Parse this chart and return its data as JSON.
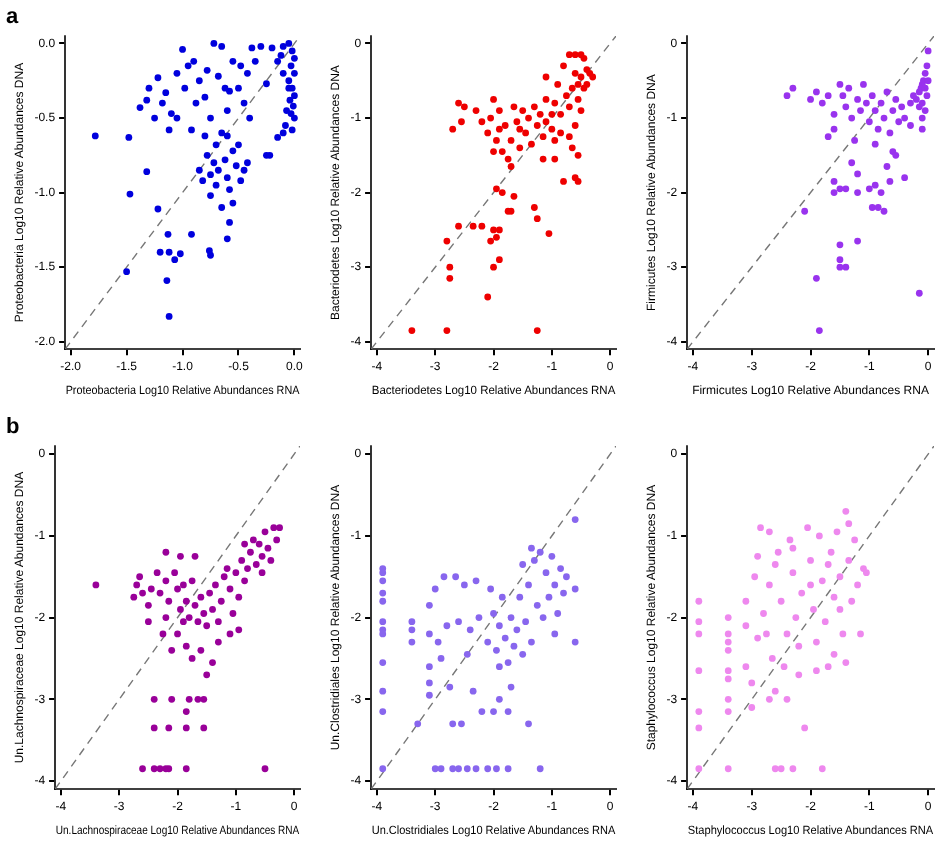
{
  "chart_data": [
    {
      "type": "scatter",
      "annotations": [
        "a"
      ],
      "xlabel": "Proteobacteria Log10 Relative Abundances RNA",
      "ylabel": "Proteobacteria Log10 Relative Abundances DNA",
      "xlim": [
        -2.05,
        0.05
      ],
      "ylim": [
        -2.05,
        0.05
      ],
      "xticks": [
        {
          "value": -2,
          "label": "-2.0"
        },
        {
          "value": -1.5,
          "label": "-1.5"
        },
        {
          "value": -1,
          "label": "-1.0"
        },
        {
          "value": -0.5,
          "label": "-0.5"
        },
        {
          "value": 0,
          "label": "0.0"
        }
      ],
      "yticks": [
        {
          "value": -2,
          "label": "-2.0"
        },
        {
          "value": -1.5,
          "label": "-1.5"
        },
        {
          "value": -1,
          "label": "-1.0"
        },
        {
          "value": -0.5,
          "label": "-0.5"
        },
        {
          "value": 0,
          "label": "0.0"
        }
      ],
      "marker": "circle",
      "legend": false,
      "series": [
        {
          "type": "line",
          "marker": "none",
          "color": "#777777",
          "line_style": "dashed",
          "x": [
            -2.05,
            0.05
          ],
          "values": [
            -2.05,
            0.05
          ]
        },
        {
          "color": "#0000dd",
          "x": [
            -1.78,
            -1.48,
            -1.47,
            -1.32,
            -1.22,
            -1.2,
            -1.13,
            -1.12,
            -1.07,
            -1.02,
            -0.92,
            -0.76,
            -0.75,
            -1.14,
            -1.12,
            -1.5,
            -0.6,
            -0.58,
            -0.55,
            -1.38,
            -1.3,
            -1.25,
            -1.22,
            -1.18,
            -1.15,
            -1.12,
            -1.1,
            -1.05,
            -1.0,
            -0.98,
            -0.95,
            -0.9,
            -0.88,
            -0.85,
            -0.8,
            -0.75,
            -0.72,
            -0.68,
            -0.65,
            -0.62,
            -0.6,
            -0.55,
            -0.5,
            -0.45,
            -0.42,
            -0.38,
            -0.35,
            -0.3,
            -0.25,
            -1.32,
            -1.05,
            -0.92,
            -0.78,
            -0.58,
            -0.48,
            -0.4,
            -0.85,
            -0.82,
            -0.8,
            -0.78,
            -0.75,
            -0.72,
            -0.7,
            -0.7,
            -0.68,
            -0.65,
            -0.65,
            -0.62,
            -0.6,
            -0.58,
            -0.55,
            -0.52,
            -0.5,
            -0.48,
            -0.45,
            -0.42,
            -0.75,
            -0.6,
            -0.25,
            -0.22,
            -0.1,
            -0.05,
            -0.02,
            0.0,
            -0.03,
            0.0,
            -0.05,
            -0.02,
            0.0,
            -0.04,
            -0.01,
            -0.03,
            0.0,
            -0.08,
            -0.05,
            -0.1,
            -0.15,
            -0.2,
            -0.15,
            -0.1,
            -0.12,
            -0.07,
            -0.02
          ],
          "values": [
            -0.62,
            -0.63,
            -1.01,
            -0.86,
            -1.11,
            -1.4,
            -1.28,
            -1.4,
            -1.45,
            -1.41,
            -1.28,
            -1.39,
            -1.42,
            -1.59,
            -1.83,
            -1.53,
            -1.31,
            -1.2,
            -1.07,
            -0.43,
            -0.3,
            -0.5,
            -0.23,
            -0.4,
            -0.33,
            -0.58,
            -0.47,
            -0.2,
            -0.04,
            -0.3,
            -0.15,
            -0.12,
            -0.4,
            -0.25,
            -0.36,
            -0.5,
            0.0,
            -0.22,
            -0.02,
            -0.3,
            -0.45,
            -0.12,
            -0.3,
            -0.4,
            -0.2,
            -0.03,
            -0.12,
            -0.02,
            -0.27,
            -0.38,
            -0.5,
            -0.58,
            -0.18,
            -0.32,
            -0.15,
            -0.5,
            -0.85,
            -0.92,
            -0.62,
            -0.75,
            -0.88,
            -0.8,
            -0.95,
            -0.68,
            -0.85,
            -0.6,
            -1.1,
            -0.78,
            -0.9,
            -0.98,
            -0.72,
            -0.82,
            -0.68,
            -0.92,
            -0.85,
            -0.8,
            -1.02,
            -0.62,
            -0.75,
            -0.75,
            -0.02,
            0.0,
            -0.05,
            -0.1,
            -0.15,
            -0.2,
            -0.25,
            -0.3,
            -0.35,
            -0.38,
            -0.42,
            -0.47,
            -0.5,
            -0.55,
            -0.3,
            -0.2,
            -0.12,
            -0.03,
            -0.63,
            -0.6,
            -0.08,
            -0.45,
            -0.58
          ]
        }
      ]
    },
    {
      "type": "scatter",
      "xlabel": "Bacteriodetes Log10 Relative Abundances RNA",
      "ylabel": "Bacteriodetes Log10 Relative Abundances DNA",
      "xlim": [
        -4.1,
        0.1
      ],
      "ylim": [
        -4.1,
        0.1
      ],
      "xticks": [
        -4,
        -3,
        -2,
        -1,
        0
      ],
      "yticks": [
        -4,
        -3,
        -2,
        -1,
        0
      ],
      "marker": "circle",
      "legend": false,
      "series": [
        {
          "type": "line",
          "marker": "none",
          "color": "#777777",
          "line_style": "dashed",
          "x": [
            -4.1,
            0.1
          ],
          "values": [
            -4.1,
            0.1
          ]
        },
        {
          "color": "#ee0000",
          "x": [
            -0.7,
            -0.6,
            -0.5,
            -0.45,
            -0.4,
            -0.35,
            -0.5,
            -0.55,
            -0.6,
            -0.65,
            -0.45,
            -0.3,
            -0.8,
            -0.75,
            -0.55,
            -0.7,
            -0.9,
            -0.95,
            -0.85,
            -1.1,
            -1.1,
            -0.5,
            -0.4,
            -2.6,
            -2.5,
            -2.7,
            -2.55,
            -2.3,
            -2.0,
            -1.9,
            -1.8,
            -2.05,
            -2.1,
            -1.95,
            -1.85,
            -1.7,
            -1.65,
            -1.6,
            -1.55,
            -1.5,
            -1.45,
            -1.4,
            -1.35,
            -1.3,
            -1.25,
            -1.2,
            -1.15,
            -1.1,
            -1.0,
            -0.95,
            -2.0,
            -1.75,
            -1.7,
            -1.9,
            -2.2,
            -1.55,
            -1.0,
            -0.85,
            -0.6,
            -0.7,
            -0.65,
            -0.55,
            -0.6,
            -0.55,
            -0.8,
            -0.95,
            -1.15,
            -1.95,
            -1.85,
            -1.75,
            -1.7,
            -1.65,
            -1.3,
            -1.25,
            -2.2,
            -2.0,
            -1.9,
            -2.05,
            -1.95,
            -1.05,
            -2.6,
            -2.35,
            -2.8,
            -2.75,
            -2.75,
            -2.0,
            -1.9,
            -2.1,
            -3.4,
            -2.8,
            -1.25
          ],
          "values": [
            -0.15,
            -0.15,
            -0.15,
            -0.2,
            -0.35,
            -0.4,
            -0.45,
            -0.55,
            -0.4,
            -0.6,
            -0.6,
            -0.45,
            -0.3,
            -0.7,
            -0.75,
            -0.85,
            -0.55,
            -0.8,
            -0.95,
            -0.45,
            -0.75,
            -0.9,
            -0.55,
            -0.8,
            -0.85,
            -1.15,
            -1.05,
            -0.9,
            -0.75,
            -0.9,
            -1.1,
            -1.0,
            -1.2,
            -1.3,
            -1.45,
            -1.3,
            -0.85,
            -1.05,
            -1.4,
            -0.9,
            -1.2,
            -1.0,
            -1.35,
            -0.85,
            -1.1,
            -0.95,
            -1.25,
            -1.05,
            -1.15,
            -1.3,
            -1.45,
            -1.55,
            -1.65,
            -1.15,
            -1.05,
            -1.15,
            -0.95,
            -1.2,
            -1.1,
            -1.25,
            -1.4,
            -1.5,
            -1.8,
            -1.85,
            -1.85,
            -1.55,
            -1.55,
            -1.95,
            -2.0,
            -2.25,
            -2.25,
            -2.05,
            -2.2,
            -2.35,
            -2.45,
            -2.5,
            -2.5,
            -2.65,
            -2.6,
            -2.55,
            -2.45,
            -2.45,
            -2.65,
            -3.0,
            -3.15,
            -3.0,
            -2.9,
            -3.4,
            -3.85,
            -3.85,
            -3.85
          ]
        }
      ]
    },
    {
      "type": "scatter",
      "xlabel": "Firmicutes Log10 Relative Abundances RNA",
      "ylabel": "Firmicutes Log10 Relative Abundances DNA",
      "xlim": [
        -4.1,
        0.1
      ],
      "ylim": [
        -4.1,
        0.1
      ],
      "xticks": [
        -4,
        -3,
        -2,
        -1,
        0
      ],
      "yticks": [
        -4,
        -3,
        -2,
        -1,
        0
      ],
      "marker": "circle",
      "legend": false,
      "series": [
        {
          "type": "line",
          "marker": "none",
          "color": "#777777",
          "line_style": "dashed",
          "x": [
            -4.1,
            0.1
          ],
          "values": [
            -4.1,
            0.1
          ]
        },
        {
          "color": "#9933ee",
          "x": [
            0,
            -0.02,
            -0.05,
            -0.08,
            -0.1,
            -0.12,
            -0.15,
            -0.05,
            -0.02,
            -0.2,
            -0.1,
            0,
            -0.25,
            -0.15,
            -0.3,
            -0.05,
            -0.1,
            -2.4,
            -2.3,
            -2.0,
            -1.9,
            -1.8,
            -1.7,
            -1.6,
            -1.5,
            -1.45,
            -1.4,
            -1.35,
            -1.3,
            -1.2,
            -1.15,
            -1.1,
            -1.05,
            -1.0,
            -0.95,
            -0.9,
            -0.85,
            -0.8,
            -0.75,
            -0.7,
            -0.65,
            -0.6,
            -0.55,
            -0.5,
            -0.45,
            -1.6,
            -1.7,
            -1.25,
            -0.9,
            -0.4,
            -0.3,
            -0.1,
            -0.6,
            -0.55,
            -0.7,
            -0.65,
            -0.4,
            -1.3,
            -1.2,
            -1.6,
            -1.6,
            -1.5,
            -1.4,
            -1.2,
            -1.0,
            -0.9,
            -0.8,
            -0.95,
            -0.85,
            -0.75,
            -2.1,
            -1.5,
            -1.5,
            -1.5,
            -1.4,
            -1.2,
            -1.9,
            -1.85,
            -0.15
          ],
          "values": [
            -0.1,
            -0.3,
            -0.4,
            -0.5,
            -0.55,
            -0.6,
            -0.65,
            -0.6,
            -0.7,
            -0.75,
            -0.8,
            -0.5,
            -0.7,
            -0.85,
            -0.8,
            -0.9,
            -1.0,
            -0.7,
            -0.6,
            -0.75,
            -0.65,
            -0.8,
            -0.7,
            -0.95,
            -0.55,
            -0.7,
            -0.85,
            -0.6,
            -1.0,
            -0.75,
            -0.9,
            -0.55,
            -0.8,
            -1.05,
            -0.7,
            -0.9,
            -1.15,
            -0.8,
            -1.0,
            -0.65,
            -1.2,
            -0.9,
            -0.75,
            -1.05,
            -0.85,
            -1.15,
            -1.25,
            -1.3,
            -1.35,
            -1.0,
            -1.1,
            -1.15,
            -1.45,
            -1.5,
            -1.65,
            -1.85,
            -1.8,
            -1.6,
            -1.75,
            -1.85,
            -2.0,
            -1.95,
            -1.95,
            -2.0,
            -1.95,
            -1.9,
            -2.0,
            -2.2,
            -2.2,
            -2.25,
            -2.25,
            -2.7,
            -2.9,
            -3.0,
            -3.0,
            -2.65,
            -3.15,
            -3.85,
            -3.35
          ]
        }
      ]
    },
    {
      "type": "scatter",
      "annotations": [
        "b"
      ],
      "xlabel": "Un.Lachnospiraceae Log10 Relative Abundances RNA",
      "ylabel": "Un.Lachnospiraceae Log10 Relative Abundances DNA",
      "xlim": [
        -4.1,
        0.1
      ],
      "ylim": [
        -4.1,
        0.1
      ],
      "xticks": [
        -4,
        -3,
        -2,
        -1,
        0
      ],
      "yticks": [
        -4,
        -3,
        -2,
        -1,
        0
      ],
      "marker": "circle",
      "legend": false,
      "series": [
        {
          "type": "line",
          "marker": "none",
          "color": "#777777",
          "line_style": "dashed",
          "x": [
            -4.1,
            0.1
          ],
          "values": [
            -4.1,
            0.1
          ]
        },
        {
          "color": "#990099",
          "x": [
            -3.4,
            -2.7,
            -2.65,
            -2.6,
            -2.75,
            -2.5,
            -2.45,
            -2.35,
            -2.3,
            -2.2,
            -2.15,
            -2.05,
            -2.0,
            -1.95,
            -1.9,
            -1.85,
            -1.8,
            -1.75,
            -1.7,
            -1.65,
            -1.6,
            -1.55,
            -1.5,
            -1.45,
            -1.4,
            -1.35,
            -1.3,
            -1.25,
            -1.2,
            -1.1,
            -1.05,
            -1.0,
            -0.95,
            -0.9,
            -0.85,
            -0.8,
            -0.75,
            -0.7,
            -0.65,
            -0.6,
            -0.55,
            -0.5,
            -0.45,
            -0.4,
            -0.35,
            -0.3,
            -0.25,
            -0.55,
            -0.85,
            -2.2,
            -1.95,
            -1.7,
            -1.15,
            -2.0,
            -1.85,
            -1.75,
            -1.6,
            -1.5,
            -1.4,
            -2.1,
            -2.25,
            -1.3,
            -1.1,
            -0.95,
            -2.4,
            -2.1,
            -1.8,
            -1.65,
            -1.55,
            -1.85,
            -2.4,
            -2.15,
            -1.85,
            -1.55,
            -2.6,
            -2.4,
            -2.3,
            -2.2,
            -2.15,
            -1.85,
            -0.5,
            -1.9,
            -2.2,
            -2.5
          ],
          "values": [
            -1.6,
            -1.6,
            -1.5,
            -1.7,
            -1.75,
            -1.85,
            -1.65,
            -1.45,
            -1.7,
            -1.55,
            -1.8,
            -1.45,
            -1.65,
            -1.9,
            -1.6,
            -1.8,
            -2.0,
            -1.55,
            -1.85,
            -2.05,
            -1.75,
            -1.95,
            -2.1,
            -1.7,
            -1.9,
            -1.6,
            -2.05,
            -1.8,
            -1.5,
            -1.65,
            -1.95,
            -1.45,
            -1.75,
            -1.3,
            -1.55,
            -1.4,
            -1.2,
            -1.05,
            -1.35,
            -1.1,
            -1.25,
            -0.95,
            -1.15,
            -1.3,
            -0.9,
            -1.05,
            -0.9,
            -1.45,
            -1.1,
            -1.2,
            -1.25,
            -1.25,
            -1.4,
            -2.2,
            -2.35,
            -2.5,
            -2.4,
            -2.7,
            -2.55,
            -2.4,
            -2.2,
            -2.3,
            -2.2,
            -2.15,
            -3.0,
            -3.0,
            -3.0,
            -3.0,
            -3.0,
            -3.15,
            -3.35,
            -3.35,
            -3.35,
            -3.35,
            -3.85,
            -3.85,
            -3.85,
            -3.85,
            -3.85,
            -3.85,
            -3.85,
            -2.05,
            -2.0,
            -2.05
          ]
        }
      ]
    },
    {
      "type": "scatter",
      "xlabel": "Un.Clostridiales Log10 Relative Abundances RNA",
      "ylabel": "Un.Clostridiales Log10 Relative Abundances DNA",
      "xlim": [
        -4.1,
        0.1
      ],
      "ylim": [
        -4.1,
        0.1
      ],
      "xticks": [
        -4,
        -3,
        -2,
        -1,
        0
      ],
      "yticks": [
        -4,
        -3,
        -2,
        -1,
        0
      ],
      "marker": "circle",
      "legend": false,
      "series": [
        {
          "type": "line",
          "marker": "none",
          "color": "#777777",
          "line_style": "dashed",
          "x": [
            -4.1,
            0.1
          ],
          "values": [
            -4.1,
            0.1
          ]
        },
        {
          "color": "#8866ee",
          "x": [
            -3.9,
            -3.9,
            -3.9,
            -3.9,
            -3.9,
            -3.9,
            -3.9,
            -3.9,
            -3.9,
            -3.9,
            -3.9,
            -3.9,
            -3.4,
            -3.4,
            -3.4,
            -3.3,
            -3.1,
            -3.1,
            -3.1,
            -3.1,
            -3.1,
            -3.0,
            -2.95,
            -2.9,
            -2.85,
            -2.8,
            -2.75,
            -2.7,
            -2.65,
            -2.6,
            -2.55,
            -2.5,
            -2.45,
            -2.4,
            -2.35,
            -2.3,
            -2.25,
            -2.2,
            -2.1,
            -2.05,
            -2.0,
            -1.95,
            -1.9,
            -1.85,
            -1.8,
            -1.75,
            -1.7,
            -1.65,
            -1.6,
            -1.55,
            -1.5,
            -1.45,
            -1.4,
            -1.35,
            -1.3,
            -1.25,
            -1.2,
            -1.15,
            -1.1,
            -1.05,
            -1.0,
            -0.95,
            -0.9,
            -0.85,
            -0.8,
            -0.75,
            -0.6,
            -0.6,
            -0.6,
            -1.5,
            -1.35,
            -0.95,
            -1.9,
            -1.7,
            -1.4,
            -1.9,
            -2.0,
            -1.75,
            -3.0,
            -2.9,
            -2.7,
            -2.6,
            -2.45,
            -2.3,
            -2.1,
            -1.95,
            -1.75,
            -1.2
          ],
          "values": [
            -1.4,
            -1.45,
            -1.55,
            -1.7,
            -1.8,
            -2.05,
            -2.15,
            -2.2,
            -2.55,
            -2.9,
            -3.15,
            -3.85,
            -2.05,
            -2.15,
            -2.3,
            -3.3,
            -1.85,
            -2.2,
            -2.6,
            -2.8,
            -2.95,
            -1.65,
            -2.3,
            -2.5,
            -1.5,
            -2.1,
            -2.85,
            -3.3,
            -1.5,
            -2.05,
            -3.3,
            -1.6,
            -2.45,
            -2.15,
            -2.9,
            -1.55,
            -2.0,
            -3.15,
            -2.3,
            -1.65,
            -1.95,
            -2.4,
            -2.1,
            -1.75,
            -2.25,
            -2.55,
            -2.0,
            -2.35,
            -2.15,
            -1.75,
            -2.45,
            -2.05,
            -1.6,
            -2.3,
            -1.3,
            -1.85,
            -1.2,
            -2.0,
            -1.45,
            -1.75,
            -1.25,
            -1.6,
            -1.95,
            -1.4,
            -1.7,
            -1.5,
            -0.8,
            -1.65,
            -2.3,
            -1.35,
            -1.15,
            -2.2,
            -2.6,
            -2.85,
            -3.3,
            -3.0,
            -3.15,
            -3.15,
            -3.85,
            -3.85,
            -3.85,
            -3.85,
            -3.85,
            -3.85,
            -3.85,
            -3.85,
            -3.85,
            -3.85
          ]
        }
      ]
    },
    {
      "type": "scatter",
      "xlabel": "Staphylococcus Log10 Relative Abundances RNA",
      "ylabel": "Staphylococcus Log10 Relative Abundances DNA",
      "xlim": [
        -4.1,
        0.1
      ],
      "ylim": [
        -4.1,
        0.1
      ],
      "xticks": [
        -4,
        -3,
        -2,
        -1,
        0
      ],
      "yticks": [
        -4,
        -3,
        -2,
        -1,
        0
      ],
      "marker": "circle",
      "legend": false,
      "series": [
        {
          "type": "line",
          "marker": "none",
          "color": "#777777",
          "line_style": "dashed",
          "x": [
            -4.1,
            0.1
          ],
          "values": [
            -4.1,
            0.1
          ]
        },
        {
          "color": "#ee88ee",
          "x": [
            -3.9,
            -3.9,
            -3.9,
            -3.9,
            -3.9,
            -3.9,
            -3.9,
            -3.4,
            -3.4,
            -3.4,
            -3.4,
            -3.4,
            -3.4,
            -3.4,
            -3.4,
            -3.4,
            -3.1,
            -3.1,
            -3.1,
            -3.0,
            -3.0,
            -2.95,
            -2.9,
            -2.85,
            -2.8,
            -2.75,
            -2.7,
            -2.7,
            -2.65,
            -2.6,
            -2.55,
            -2.5,
            -2.45,
            -2.4,
            -2.35,
            -2.3,
            -2.25,
            -2.2,
            -2.15,
            -2.1,
            -2.05,
            -2.0,
            -1.95,
            -1.9,
            -1.85,
            -1.8,
            -1.75,
            -1.7,
            -1.65,
            -1.6,
            -1.55,
            -1.5,
            -1.45,
            -1.4,
            -1.35,
            -1.3,
            -1.25,
            -1.2,
            -1.15,
            -1.1,
            -1.05,
            -1.4,
            -1.5,
            -1.6,
            -1.9,
            -2.2,
            -2.4,
            -2.6,
            -2.7,
            -2.9,
            -1.35,
            -1.7,
            -2.0,
            -2.3,
            -2.6,
            -2.5,
            -2.3,
            -1.8
          ],
          "values": [
            -1.8,
            -2.05,
            -2.2,
            -2.65,
            -3.15,
            -3.35,
            -3.85,
            -2.0,
            -2.2,
            -2.3,
            -2.4,
            -2.65,
            -2.75,
            -3.0,
            -3.15,
            -3.85,
            -1.8,
            -2.1,
            -2.6,
            -2.8,
            -3.1,
            -1.5,
            -1.25,
            -0.9,
            -1.95,
            -2.2,
            -0.95,
            -1.6,
            -2.5,
            -2.9,
            -1.2,
            -1.8,
            -2.6,
            -3.0,
            -1.05,
            -1.45,
            -2.0,
            -2.35,
            -1.7,
            -3.35,
            -0.9,
            -1.3,
            -1.9,
            -2.3,
            -1.0,
            -1.55,
            -2.05,
            -2.6,
            -1.2,
            -1.75,
            -0.95,
            -1.5,
            -2.2,
            -0.7,
            -1.3,
            -1.8,
            -1.05,
            -1.6,
            -2.2,
            -1.4,
            -1.45,
            -2.55,
            -1.9,
            -2.45,
            -2.65,
            -2.7,
            -2.2,
            -1.35,
            -3.0,
            -2.25,
            -0.85,
            -1.35,
            -1.6,
            -1.15,
            -3.85,
            -3.85,
            -3.85,
            -3.85
          ]
        }
      ]
    }
  ]
}
